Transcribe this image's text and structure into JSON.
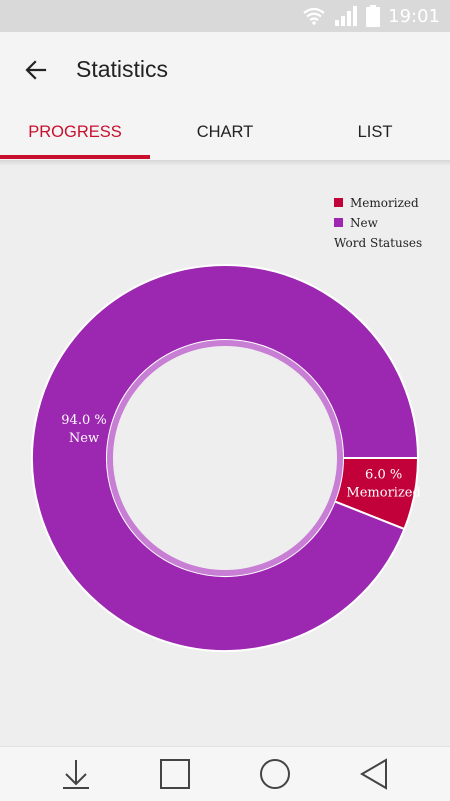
{
  "status_bar": {
    "time": "19:01",
    "icons": [
      "wifi-icon",
      "signal-icon",
      "battery-icon"
    ]
  },
  "app_bar": {
    "title": "Statistics",
    "back_icon": "arrow-back-icon"
  },
  "tabs": [
    {
      "label": "PROGRESS",
      "active": true
    },
    {
      "label": "CHART",
      "active": false
    },
    {
      "label": "LIST",
      "active": false
    }
  ],
  "colors": {
    "accent": "#c8102e",
    "memorized": "#c2003a",
    "new": "#9c27b0",
    "inner_ring": "#c77ed4"
  },
  "chart_data": {
    "type": "pie",
    "style": "donut",
    "legend_title": "Word Statuses",
    "legend_position": "top-right",
    "slices": [
      {
        "name": "Memorized",
        "value": 6.0,
        "label": "6.0 %"
      },
      {
        "name": "New",
        "value": 94.0,
        "label": "94.0 %"
      }
    ]
  },
  "nav_bar": {
    "icons": [
      "download-icon",
      "recent-apps-icon",
      "home-icon",
      "back-triangle-icon"
    ]
  }
}
